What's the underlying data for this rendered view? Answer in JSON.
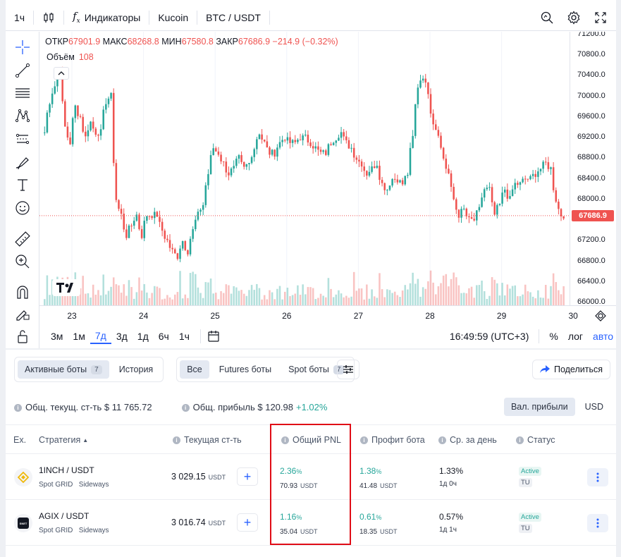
{
  "topbar": {
    "interval": "1ч",
    "indicators_label": "Индикаторы",
    "exchange": "Kucoin",
    "symbol": "BTC / USDT"
  },
  "legend": {
    "open_label": "ОТКР",
    "open": "67901.9",
    "high_label": "МАКС",
    "high": "68268.8",
    "low_label": "МИН",
    "low": "67580.8",
    "close_label": "ЗАКР",
    "close": "67686.9",
    "change": "−214.9 (−0.32%)",
    "volume_label": "Объём",
    "volume": "108"
  },
  "chart_data": {
    "type": "candlestick",
    "symbol": "BTC / USDT",
    "interval": "1ч",
    "y_ticks": [
      "71200.0",
      "70800.0",
      "70400.0",
      "70000.0",
      "69600.0",
      "69200.0",
      "68800.0",
      "68400.0",
      "68000.0",
      "67600.0",
      "67200.0",
      "66800.0",
      "66400.0",
      "66000.0"
    ],
    "ylim": [
      65950,
      71250
    ],
    "x_ticks": [
      "23",
      "24",
      "25",
      "26",
      "27",
      "28",
      "29",
      "30"
    ],
    "last_price": "67686.9",
    "close_path": [
      69300,
      69900,
      70200,
      70600,
      69400,
      69100,
      69800,
      69600,
      69200,
      69500,
      69300,
      69300,
      69900,
      70000,
      68000,
      67700,
      67300,
      67500,
      67700,
      67300,
      67700,
      67700,
      67700,
      67400,
      67200,
      67000,
      66900,
      67200,
      67000,
      67400,
      67700,
      67900,
      68500,
      69000,
      68900,
      68700,
      68500,
      68600,
      68800,
      68600,
      68700,
      69000,
      69300,
      69100,
      68900,
      68900,
      69100,
      69200,
      69100,
      69100,
      69200,
      69200,
      69100,
      69000,
      68900,
      68900,
      69100,
      69200,
      69300,
      69100,
      69000,
      68800,
      68700,
      68500,
      68600,
      68700,
      68300,
      68200,
      68400,
      68400,
      68300,
      68500,
      69200,
      70200,
      70400,
      70100,
      69500,
      69300,
      68800,
      68500,
      68000,
      67700,
      67800,
      67600,
      67600,
      67800,
      68200,
      68200,
      67700,
      67900,
      68200,
      68000,
      68300,
      68300,
      68400,
      68400,
      68500,
      68600,
      68700,
      68600,
      68000,
      67700,
      67700
    ]
  },
  "price_axis": {
    "labels": [
      "71200.0",
      "70800.0",
      "70400.0",
      "70000.0",
      "69600.0",
      "69200.0",
      "68800.0",
      "68400.0",
      "68000.0",
      "67600.0",
      "67200.0",
      "66800.0",
      "66400.0",
      "66000.0"
    ],
    "last_price": "67686.9"
  },
  "time_axis": [
    "23",
    "24",
    "25",
    "26",
    "27",
    "28",
    "29",
    "30"
  ],
  "ranges": [
    "3м",
    "1м",
    "7д",
    "3д",
    "1д",
    "6ч",
    "1ч"
  ],
  "active_range": "7д",
  "bottombar": {
    "time": "16:49:59 (UTC+3)",
    "percent": "%",
    "log": "лог",
    "auto": "авто"
  },
  "filters": {
    "active_bots": "Активные боты",
    "active_count": "7",
    "history": "История",
    "all": "Все",
    "futures": "Futures боты",
    "spot": "Spot боты",
    "spot_count": "7"
  },
  "share_label": "Поделиться",
  "summary": {
    "total_value": "Общ. текущ. ст-ть $ 11 765.72",
    "total_profit": "Общ. прибыль $ 120.98",
    "total_profit_pct": "+1.02%"
  },
  "currency_toggle": {
    "profit_currency": "Вал. прибыли",
    "usd": "USD"
  },
  "table": {
    "headers": {
      "exchange": "Ex.",
      "strategy": "Стратегия",
      "current_value": "Текущая ст-ть",
      "total_pnl": "Общий PNL",
      "bot_profit": "Профит бота",
      "daily_avg": "Ср. за день",
      "status": "Статус"
    },
    "rows": [
      {
        "pair": "1INCH / USDT",
        "strategy": "Spot GRID",
        "mode": "Sideways",
        "value": "3 029.15",
        "unit": "USDT",
        "pnl_pct": "2.36",
        "pnl_usdt": "70.93",
        "profit_pct": "1.38",
        "profit_usdt": "41.48",
        "daily_pct": "1.33%",
        "age": "1д 0ч",
        "status": "Active",
        "tag": "TU"
      },
      {
        "pair": "AGIX / USDT",
        "strategy": "Spot GRID",
        "mode": "Sideways",
        "value": "3 016.74",
        "unit": "USDT",
        "pnl_pct": "1.16",
        "pnl_usdt": "35.04",
        "profit_pct": "0.61",
        "profit_usdt": "18.35",
        "daily_pct": "0.57%",
        "age": "1д 1ч",
        "status": "Active",
        "tag": "TU"
      }
    ],
    "pct_sign": "%",
    "agix_logo_text": "SNET"
  },
  "colors": {
    "up": "#26a69a",
    "down": "#ef5350",
    "accent": "#2962ff",
    "highlight": "#e00c16"
  }
}
